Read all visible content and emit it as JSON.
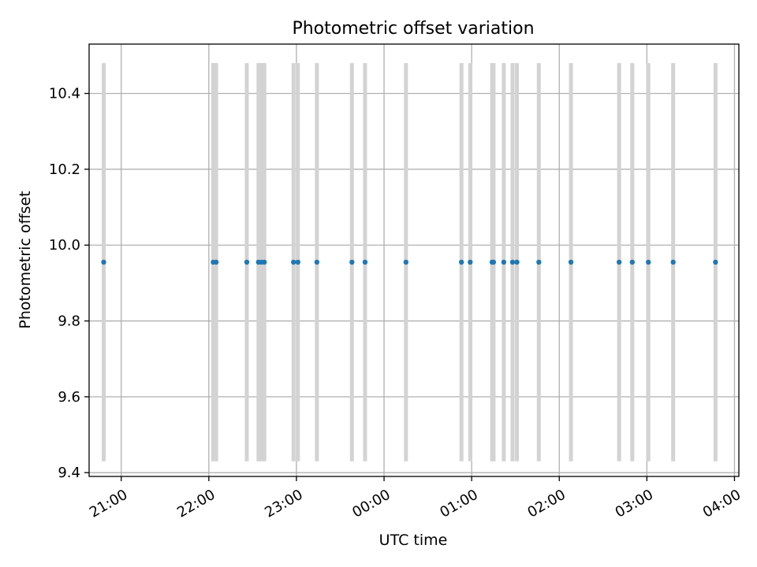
{
  "chart_data": {
    "type": "scatter",
    "title": "Photometric offset variation",
    "xlabel": "UTC time",
    "ylabel": "Photometric offset",
    "x_tick_labels": [
      "21:00",
      "22:00",
      "23:00",
      "00:00",
      "01:00",
      "02:00",
      "03:00",
      "04:00"
    ],
    "x_tick_times": [
      "2000-01-01T21:00",
      "2000-01-01T22:00",
      "2000-01-01T23:00",
      "2000-01-02T00:00",
      "2000-01-02T01:00",
      "2000-01-02T02:00",
      "2000-01-02T03:00",
      "2000-01-02T04:00"
    ],
    "xlim": [
      "2000-01-01T20:38",
      "2000-01-02T04:03"
    ],
    "y_ticks": [
      9.4,
      9.6,
      9.8,
      10.0,
      10.2,
      10.4
    ],
    "y_tick_labels": [
      "9.4",
      "9.6",
      "9.8",
      "10.0",
      "10.2",
      "10.4"
    ],
    "ylim": [
      9.39,
      10.53
    ],
    "grid": true,
    "errorbar_range": [
      9.43,
      10.48
    ],
    "points": [
      {
        "time": "2000-01-01T20:48",
        "y": 9.955
      },
      {
        "time": "2000-01-01T22:03",
        "y": 9.955
      },
      {
        "time": "2000-01-01T22:05",
        "y": 9.955
      },
      {
        "time": "2000-01-01T22:26",
        "y": 9.955
      },
      {
        "time": "2000-01-01T22:34",
        "y": 9.955
      },
      {
        "time": "2000-01-01T22:36",
        "y": 9.955
      },
      {
        "time": "2000-01-01T22:38",
        "y": 9.955
      },
      {
        "time": "2000-01-01T22:58",
        "y": 9.955
      },
      {
        "time": "2000-01-01T23:01",
        "y": 9.955
      },
      {
        "time": "2000-01-01T23:14",
        "y": 9.955
      },
      {
        "time": "2000-01-01T23:38",
        "y": 9.955
      },
      {
        "time": "2000-01-01T23:47",
        "y": 9.955
      },
      {
        "time": "2000-01-02T00:15",
        "y": 9.955
      },
      {
        "time": "2000-01-02T00:53",
        "y": 9.955
      },
      {
        "time": "2000-01-02T00:59",
        "y": 9.955
      },
      {
        "time": "2000-01-02T01:14",
        "y": 9.955
      },
      {
        "time": "2000-01-02T01:15",
        "y": 9.955
      },
      {
        "time": "2000-01-02T01:22",
        "y": 9.955
      },
      {
        "time": "2000-01-02T01:28",
        "y": 9.955
      },
      {
        "time": "2000-01-02T01:31",
        "y": 9.955
      },
      {
        "time": "2000-01-02T01:46",
        "y": 9.955
      },
      {
        "time": "2000-01-02T02:08",
        "y": 9.955
      },
      {
        "time": "2000-01-02T02:41",
        "y": 9.955
      },
      {
        "time": "2000-01-02T02:50",
        "y": 9.955
      },
      {
        "time": "2000-01-02T03:01",
        "y": 9.955
      },
      {
        "time": "2000-01-02T03:18",
        "y": 9.955
      },
      {
        "time": "2000-01-02T03:47",
        "y": 9.955
      }
    ],
    "colors": {
      "point": "#1f77b4",
      "errorbar": "#d3d3d3",
      "grid": "#b0b0b0",
      "axis": "#000000"
    }
  }
}
